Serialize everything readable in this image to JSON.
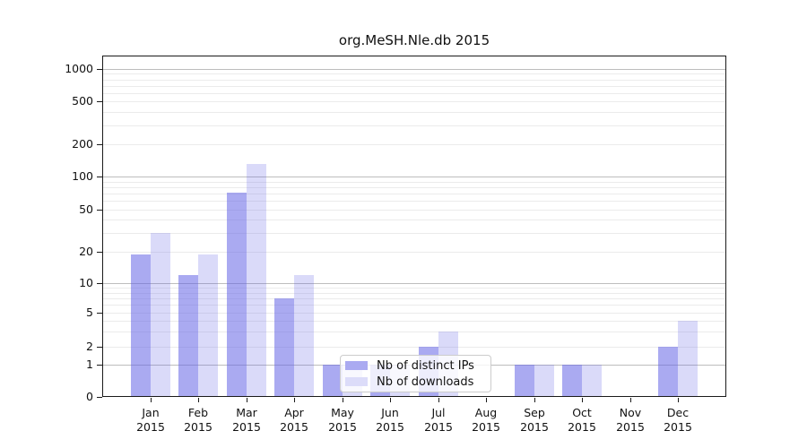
{
  "figure": {
    "background": "#ffffff",
    "text_color": "#111111"
  },
  "chart_data": {
    "type": "bar",
    "title": "org.MeSH.Nle.db 2015",
    "categories": [
      "Jan",
      "Feb",
      "Mar",
      "Apr",
      "May",
      "Jun",
      "Jul",
      "Aug",
      "Sep",
      "Oct",
      "Nov",
      "Dec"
    ],
    "category_year_line": "2015",
    "series": [
      {
        "name": "Nb of distinct IPs",
        "values": [
          19,
          12,
          72,
          7,
          1,
          1,
          2,
          0,
          1,
          1,
          0,
          2
        ],
        "fill": "rgba(100,100,230,0.55)",
        "swatch": "#aaaaf1"
      },
      {
        "name": "Nb of downloads",
        "values": [
          30,
          19,
          130,
          12,
          1,
          1,
          3,
          0,
          1,
          1,
          0,
          4
        ],
        "fill": "rgba(100,100,230,0.24)",
        "swatch": "#dcdcf9"
      }
    ],
    "y_axis": {
      "scale": "symlog-like",
      "ticks": [
        0,
        1,
        2,
        5,
        10,
        20,
        50,
        100,
        200,
        500,
        1000
      ],
      "tick_labels": [
        "0",
        "1",
        "2",
        "5",
        "10",
        "20",
        "50",
        "100",
        "200",
        "500",
        "1000"
      ]
    },
    "x_axis": {
      "tick_labels_line1": [
        "Jan",
        "Feb",
        "Mar",
        "Apr",
        "May",
        "Jun",
        "Jul",
        "Aug",
        "Sep",
        "Oct",
        "Nov",
        "Dec"
      ],
      "tick_labels_line2": [
        "2015",
        "2015",
        "2015",
        "2015",
        "2015",
        "2015",
        "2015",
        "2015",
        "2015",
        "2015",
        "2015",
        "2015"
      ]
    },
    "grid": {
      "minor_color": "#ebebeb",
      "major_color": "#bdbdbd",
      "major_values": [
        1,
        10,
        100,
        1000
      ]
    },
    "legend": {
      "position": "lower-center",
      "entries": [
        "Nb of distinct IPs",
        "Nb of downloads"
      ]
    }
  }
}
